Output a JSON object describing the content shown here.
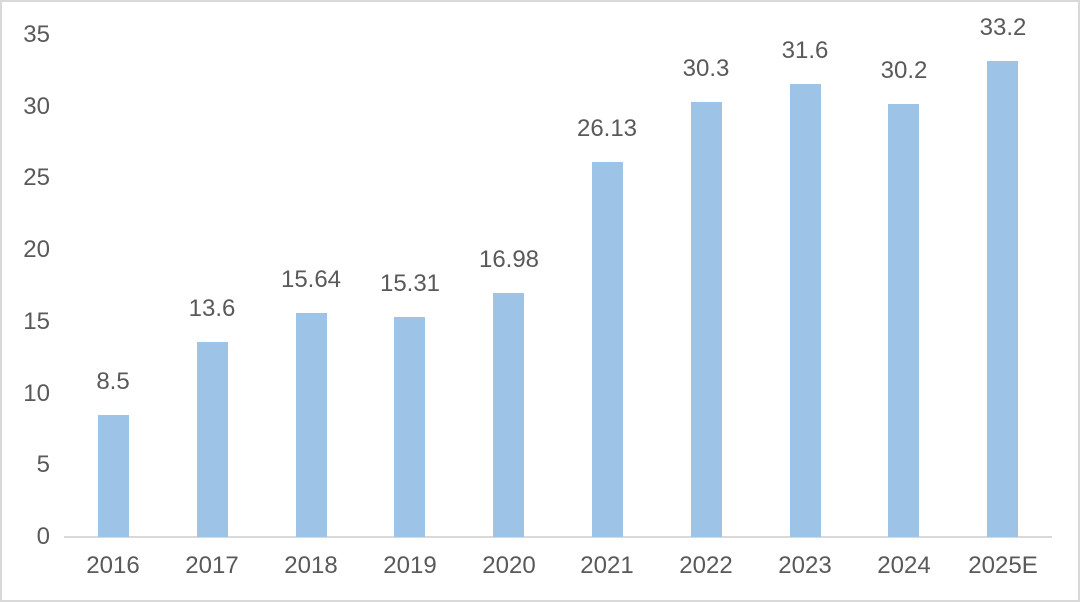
{
  "chart_data": {
    "type": "bar",
    "title": "",
    "categories": [
      "2016",
      "2017",
      "2018",
      "2019",
      "2020",
      "2021",
      "2022",
      "2023",
      "2024",
      "2025E"
    ],
    "values": [
      8.5,
      13.6,
      15.64,
      15.31,
      16.98,
      26.13,
      30.3,
      31.6,
      30.2,
      33.2
    ],
    "data_labels": [
      "8.5",
      "13.6",
      "15.64",
      "15.31",
      "16.98",
      "26.13",
      "30.3",
      "31.6",
      "30.2",
      "33.2"
    ],
    "xlabel": "",
    "ylabel": "",
    "y_ticks": [
      "0",
      "5",
      "10",
      "15",
      "20",
      "25",
      "30",
      "35"
    ],
    "y_tick_values": [
      0,
      5,
      10,
      15,
      20,
      25,
      30,
      35
    ],
    "ylim": [
      0,
      35
    ],
    "grid": false,
    "legend": "none",
    "colors": {
      "bar_fill": "#9DC3E6",
      "axis_line": "#D9D9D9",
      "label_text": "#595959",
      "background": "#FFFFFF",
      "frame_border": "#D9D9D9"
    }
  }
}
